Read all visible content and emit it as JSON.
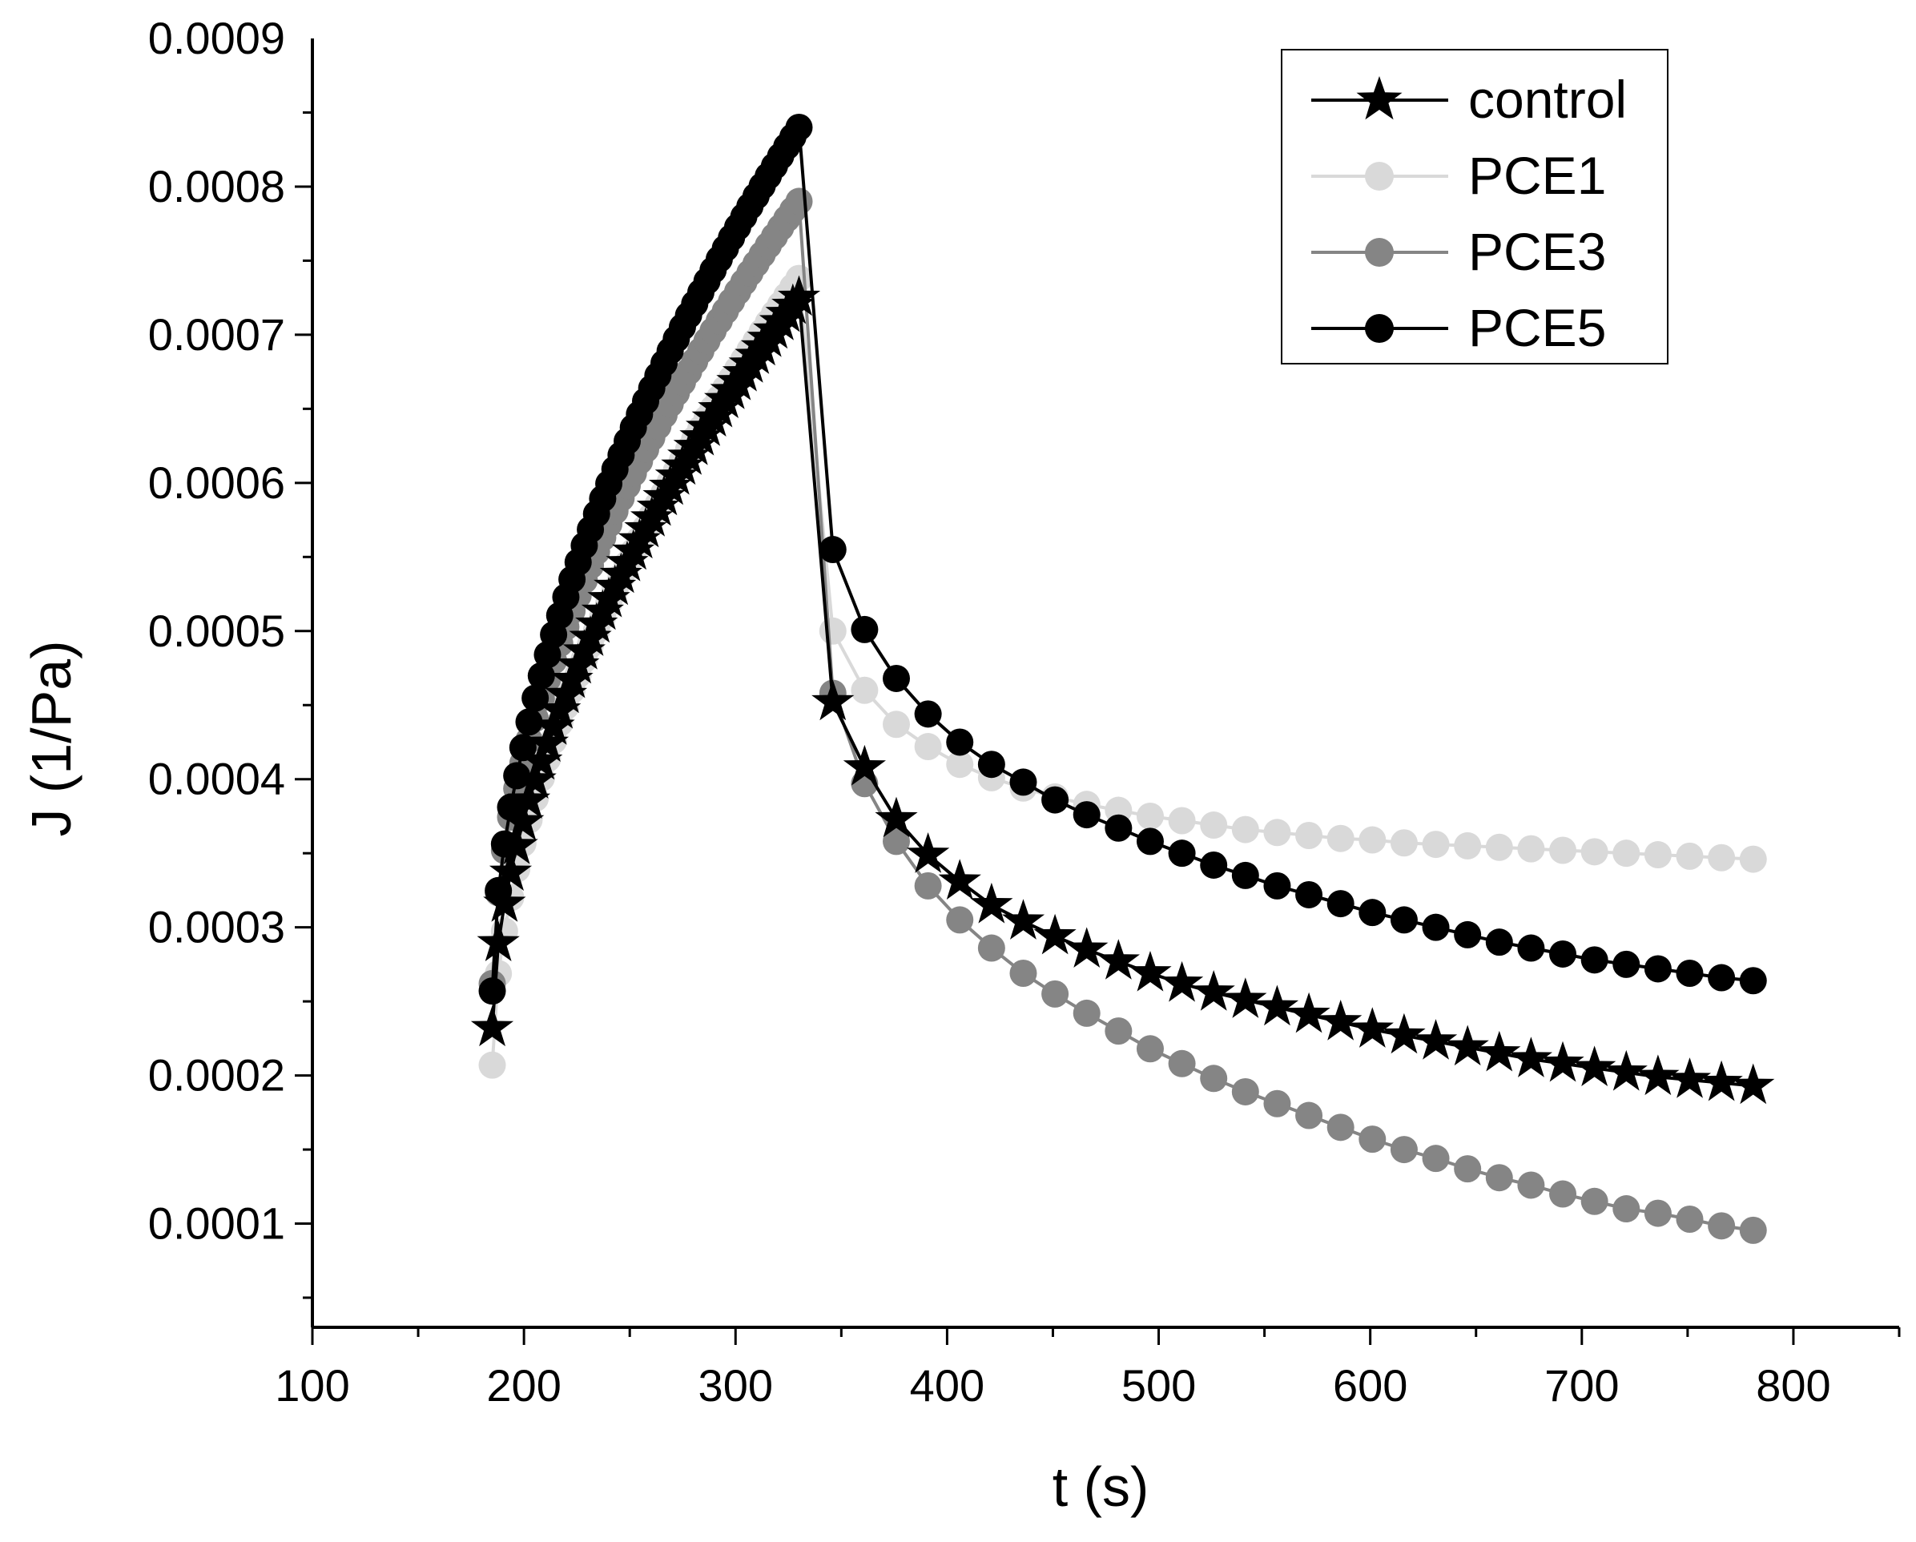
{
  "chart_data": {
    "type": "line",
    "title": "",
    "xlabel": "t (s)",
    "ylabel": "J (1/Pa)",
    "xlim": [
      100,
      850
    ],
    "ylim": [
      3e-05,
      0.0009
    ],
    "xticks": [
      100,
      200,
      300,
      400,
      500,
      600,
      700,
      800
    ],
    "xtick_labels": [
      "100",
      "200",
      "300",
      "400",
      "500",
      "600",
      "700",
      "800"
    ],
    "yticks": [
      0.0001,
      0.0002,
      0.0003,
      0.0004,
      0.0005,
      0.0006,
      0.0007,
      0.0008,
      0.0009
    ],
    "ytick_labels": [
      "0.0001",
      "0.0002",
      "0.0003",
      "0.0004",
      "0.0005",
      "0.0006",
      "0.0007",
      "0.0008",
      "0.0009"
    ],
    "legend_position": "top-right",
    "phases": {
      "creep_start": 185,
      "creep_end": 330,
      "recovery_end": 781
    },
    "series": [
      {
        "name": "control",
        "marker": "star",
        "color": "#000000",
        "line_color": "#000000",
        "creep": [
          [
            185,
            0.000232
          ],
          [
            188,
            0.000285
          ],
          [
            330,
            0.000725
          ]
        ],
        "recovery": [
          [
            346,
            0.000452
          ],
          [
            361,
            0.000408
          ],
          [
            376,
            0.000373
          ],
          [
            391,
            0.000349
          ],
          [
            406,
            0.000331
          ],
          [
            421,
            0.000315
          ],
          [
            436,
            0.000304
          ],
          [
            451,
            0.000294
          ],
          [
            466,
            0.000285
          ],
          [
            481,
            0.000277
          ],
          [
            496,
            0.000269
          ],
          [
            511,
            0.000262
          ],
          [
            526,
            0.000256
          ],
          [
            541,
            0.000251
          ],
          [
            556,
            0.000246
          ],
          [
            571,
            0.000241
          ],
          [
            586,
            0.000236
          ],
          [
            601,
            0.000231
          ],
          [
            616,
            0.000227
          ],
          [
            631,
            0.000223
          ],
          [
            646,
            0.000219
          ],
          [
            661,
            0.000215
          ],
          [
            676,
            0.000211
          ],
          [
            691,
            0.000208
          ],
          [
            706,
            0.000205
          ],
          [
            721,
            0.000202
          ],
          [
            736,
            0.000199
          ],
          [
            751,
            0.000197
          ],
          [
            766,
            0.000195
          ],
          [
            781,
            0.000193
          ]
        ]
      },
      {
        "name": "PCE1",
        "marker": "circle",
        "color": "#d9d9d9",
        "line_color": "#d9d9d9",
        "creep": [
          [
            185,
            0.000207
          ],
          [
            189,
            0.000264
          ],
          [
            330,
            0.000738
          ]
        ],
        "recovery": [
          [
            346,
            0.0005
          ],
          [
            361,
            0.00046
          ],
          [
            376,
            0.000437
          ],
          [
            391,
            0.000422
          ],
          [
            406,
            0.00041
          ],
          [
            421,
            0.000401
          ],
          [
            436,
            0.000394
          ],
          [
            451,
            0.000388
          ],
          [
            466,
            0.000383
          ],
          [
            481,
            0.000379
          ],
          [
            496,
            0.000375
          ],
          [
            511,
            0.000372
          ],
          [
            526,
            0.000369
          ],
          [
            541,
            0.000366
          ],
          [
            556,
            0.000364
          ],
          [
            571,
            0.000362
          ],
          [
            586,
            0.00036
          ],
          [
            601,
            0.000359
          ],
          [
            616,
            0.000357
          ],
          [
            631,
            0.000356
          ],
          [
            646,
            0.000355
          ],
          [
            661,
            0.000354
          ],
          [
            676,
            0.000353
          ],
          [
            691,
            0.000352
          ],
          [
            706,
            0.000351
          ],
          [
            721,
            0.00035
          ],
          [
            736,
            0.000349
          ],
          [
            751,
            0.000348
          ],
          [
            766,
            0.000347
          ],
          [
            781,
            0.000346
          ]
        ]
      },
      {
        "name": "PCE3",
        "marker": "circle",
        "color": "#858585",
        "line_color": "#858585",
        "creep": [
          [
            185,
            0.000262
          ],
          [
            330,
            0.00079
          ]
        ],
        "recovery": [
          [
            346,
            0.000458
          ],
          [
            361,
            0.000397
          ],
          [
            376,
            0.000358
          ],
          [
            391,
            0.000328
          ],
          [
            406,
            0.000305
          ],
          [
            421,
            0.000286
          ],
          [
            436,
            0.000269
          ],
          [
            451,
            0.000255
          ],
          [
            466,
            0.000242
          ],
          [
            481,
            0.00023
          ],
          [
            496,
            0.000218
          ],
          [
            511,
            0.000208
          ],
          [
            526,
            0.000198
          ],
          [
            541,
            0.000189
          ],
          [
            556,
            0.000181
          ],
          [
            571,
            0.000173
          ],
          [
            586,
            0.000165
          ],
          [
            601,
            0.000157
          ],
          [
            616,
            0.00015
          ],
          [
            631,
            0.000144
          ],
          [
            646,
            0.000137
          ],
          [
            661,
            0.000131
          ],
          [
            676,
            0.000126
          ],
          [
            691,
            0.00012
          ],
          [
            706,
            0.000115
          ],
          [
            721,
            0.00011
          ],
          [
            736,
            0.000107
          ],
          [
            751,
            0.000103
          ],
          [
            766,
            9.85e-05
          ],
          [
            781,
            9.55e-05
          ]
        ]
      },
      {
        "name": "PCE5",
        "marker": "circle",
        "color": "#000000",
        "line_color": "#000000",
        "creep": [
          [
            185,
            0.000257
          ],
          [
            330,
            0.00084
          ]
        ],
        "recovery": [
          [
            346,
            0.000555
          ],
          [
            361,
            0.000501
          ],
          [
            376,
            0.000468
          ],
          [
            391,
            0.000444
          ],
          [
            406,
            0.000425
          ],
          [
            421,
            0.00041
          ],
          [
            436,
            0.000398
          ],
          [
            451,
            0.000386
          ],
          [
            466,
            0.000376
          ],
          [
            481,
            0.000367
          ],
          [
            496,
            0.000358
          ],
          [
            511,
            0.00035
          ],
          [
            526,
            0.000342
          ],
          [
            541,
            0.000335
          ],
          [
            556,
            0.000328
          ],
          [
            571,
            0.000322
          ],
          [
            586,
            0.000316
          ],
          [
            601,
            0.00031
          ],
          [
            616,
            0.000305
          ],
          [
            631,
            0.0003
          ],
          [
            646,
            0.000295
          ],
          [
            661,
            0.00029
          ],
          [
            676,
            0.000286
          ],
          [
            691,
            0.000282
          ],
          [
            706,
            0.000278
          ],
          [
            721,
            0.000275
          ],
          [
            736,
            0.000272
          ],
          [
            751,
            0.000269
          ],
          [
            766,
            0.000266
          ],
          [
            781,
            0.000264
          ]
        ]
      }
    ]
  }
}
